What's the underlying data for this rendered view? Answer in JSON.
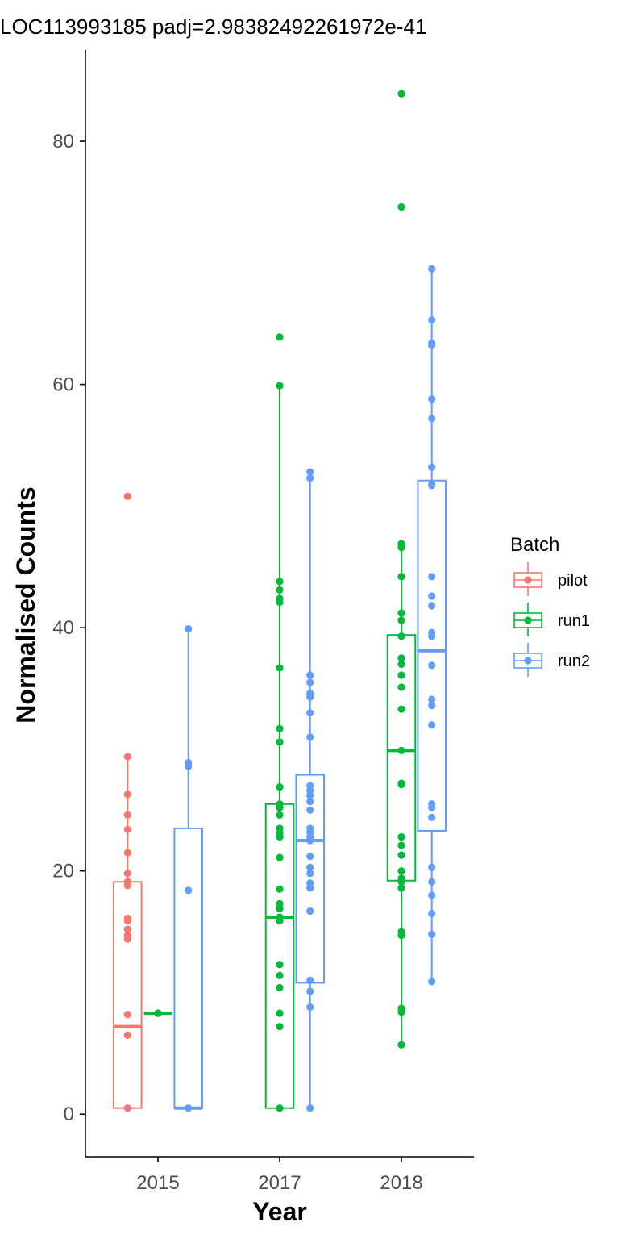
{
  "chart_data": {
    "type": "boxplot",
    "title": "LOC113993185 padj=2.98382492261972e-41",
    "xlabel": "Year",
    "ylabel": "Normalised Counts",
    "categories": [
      "2015",
      "2017",
      "2018"
    ],
    "y_ticks": [
      "0",
      "20",
      "40",
      "60",
      "80"
    ],
    "ylim": [
      -3.5,
      87.5
    ],
    "grid": false,
    "legend": {
      "title": "Batch",
      "position": "right",
      "entries": [
        "pilot",
        "run1",
        "run2"
      ]
    },
    "series": [
      {
        "name": "pilot",
        "color": "#F8766D",
        "groups": [
          {
            "category": "2015",
            "box": {
              "q1": 0.5,
              "median": 7.2,
              "q3": 19.1,
              "whisker_low": 0.5,
              "whisker_high": 29.4
            },
            "points": [
              0.5,
              6.5,
              8.2,
              14.4,
              14.7,
              15.2,
              15.9,
              16.1,
              18.8,
              19.1,
              19.8,
              21.5,
              23.4,
              24.6,
              26.3,
              29.4,
              50.8
            ]
          }
        ]
      },
      {
        "name": "run1",
        "color": "#00BA38",
        "groups": [
          {
            "category": "2015",
            "box": {
              "q1": 8.3,
              "median": 8.3,
              "q3": 8.3,
              "whisker_low": 8.3,
              "whisker_high": 8.3
            },
            "points": [
              8.3,
              8.3
            ]
          },
          {
            "category": "2017",
            "box": {
              "q1": 0.5,
              "median": 16.2,
              "q3": 25.5,
              "whisker_low": 0.5,
              "whisker_high": 59.9
            },
            "points": [
              0.5,
              7.2,
              8.3,
              10.4,
              11.4,
              12.3,
              15.9,
              16.2,
              16.9,
              17.3,
              18.5,
              21.1,
              22.8,
              23.1,
              23.5,
              24.6,
              25.2,
              25.5,
              26.9,
              30.6,
              31.7,
              36.7,
              42.1,
              42.4,
              43.1,
              43.8,
              59.9,
              63.9
            ]
          },
          {
            "category": "2018",
            "box": {
              "q1": 19.2,
              "median": 29.9,
              "q3": 39.4,
              "whisker_low": 5.7,
              "whisker_high": 46.9
            },
            "points": [
              5.7,
              8.4,
              8.7,
              14.7,
              15.0,
              18.6,
              19.1,
              19.4,
              20.0,
              21.3,
              22.1,
              22.8,
              27.1,
              27.2,
              29.9,
              33.3,
              35.1,
              36.1,
              37.0,
              37.5,
              39.3,
              40.6,
              41.2,
              44.2,
              46.6,
              46.9,
              74.6,
              83.9
            ]
          }
        ]
      },
      {
        "name": "run2",
        "color": "#619CFF",
        "groups": [
          {
            "category": "2015",
            "box": {
              "q1": 0.5,
              "median": 0.5,
              "q3": 23.5,
              "whisker_low": 0.5,
              "whisker_high": 39.9
            },
            "points": [
              0.5,
              18.4,
              28.6,
              28.9,
              39.9
            ]
          },
          {
            "category": "2017",
            "box": {
              "q1": 10.8,
              "median": 22.5,
              "q3": 27.9,
              "whisker_low": 0.5,
              "whisker_high": 52.8
            },
            "points": [
              0.5,
              8.8,
              10.1,
              11.0,
              16.7,
              18.6,
              19.0,
              19.8,
              20.3,
              21.2,
              22.5,
              22.8,
              23.2,
              23.5,
              25.0,
              25.7,
              26.2,
              26.6,
              27.0,
              31.0,
              33.0,
              34.3,
              34.6,
              35.5,
              36.1,
              52.3,
              52.8
            ]
          },
          {
            "category": "2018",
            "box": {
              "q1": 23.3,
              "median": 38.1,
              "q3": 52.1,
              "whisker_low": 10.9,
              "whisker_high": 69.5
            },
            "points": [
              10.9,
              14.8,
              16.5,
              18.0,
              19.1,
              20.3,
              24.4,
              25.2,
              25.5,
              32.0,
              33.6,
              34.1,
              36.9,
              39.3,
              39.6,
              41.8,
              42.6,
              44.2,
              51.7,
              51.8,
              53.2,
              57.2,
              58.8,
              63.2,
              63.4,
              65.3,
              69.5
            ]
          }
        ]
      }
    ]
  }
}
